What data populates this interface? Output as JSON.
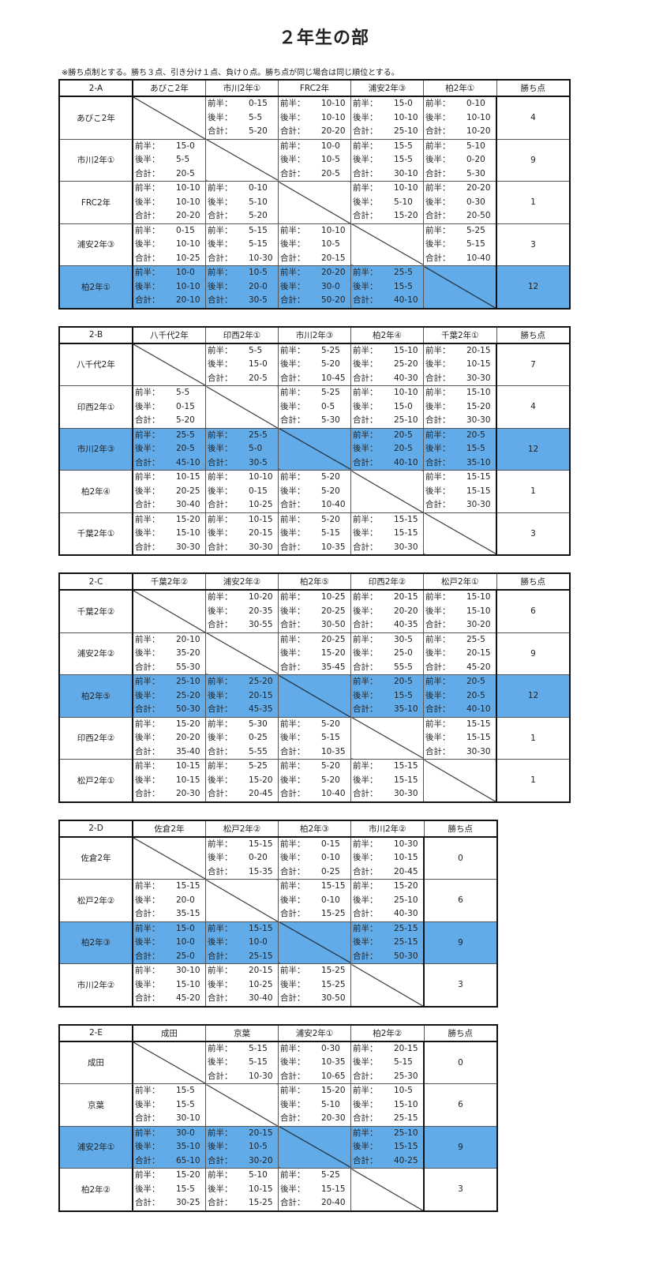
{
  "title": "２年生の部",
  "note": "※勝ち点制とする。勝ち３点、引き分け１点、負け０点。勝ち点が同じ場合は同じ順位とする。",
  "labels": {
    "first": "前半：",
    "second": "後半：",
    "total": "合計：",
    "points": "勝ち点"
  },
  "highlight_color": "#62abe9",
  "groups": [
    {
      "name": "2-A",
      "teams": [
        "あびこ2年",
        "市川2年①",
        "FRC2年",
        "浦安2年③",
        "柏2年①"
      ],
      "points": [
        "4",
        "9",
        "1",
        "3",
        "12"
      ],
      "highlighted": 4,
      "results": [
        [
          null,
          [
            "0-15",
            "5-5",
            "5-20"
          ],
          [
            "10-10",
            "10-10",
            "20-20"
          ],
          [
            "15-0",
            "10-10",
            "25-10"
          ],
          [
            "0-10",
            "10-10",
            "10-20"
          ]
        ],
        [
          [
            "15-0",
            "5-5",
            "20-5"
          ],
          null,
          [
            "10-0",
            "10-5",
            "20-5"
          ],
          [
            "15-5",
            "15-5",
            "30-10"
          ],
          [
            "5-10",
            "0-20",
            "5-30"
          ]
        ],
        [
          [
            "10-10",
            "10-10",
            "20-20"
          ],
          [
            "0-10",
            "5-10",
            "5-20"
          ],
          null,
          [
            "10-10",
            "5-10",
            "15-20"
          ],
          [
            "20-20",
            "0-30",
            "20-50"
          ]
        ],
        [
          [
            "0-15",
            "10-10",
            "10-25"
          ],
          [
            "5-15",
            "5-15",
            "10-30"
          ],
          [
            "10-10",
            "10-5",
            "20-15"
          ],
          null,
          [
            "5-25",
            "5-15",
            "10-40"
          ]
        ],
        [
          [
            "10-0",
            "10-10",
            "20-10"
          ],
          [
            "10-5",
            "20-0",
            "30-5"
          ],
          [
            "20-20",
            "30-0",
            "50-20"
          ],
          [
            "25-5",
            "15-5",
            "40-10"
          ],
          null
        ]
      ]
    },
    {
      "name": "2-B",
      "teams": [
        "八千代2年",
        "印西2年①",
        "市川2年③",
        "柏2年④",
        "千葉2年①"
      ],
      "points": [
        "7",
        "4",
        "12",
        "1",
        "3"
      ],
      "highlighted": 2,
      "results": [
        [
          null,
          [
            "5-5",
            "15-0",
            "20-5"
          ],
          [
            "5-25",
            "5-20",
            "10-45"
          ],
          [
            "15-10",
            "25-20",
            "40-30"
          ],
          [
            "20-15",
            "10-15",
            "30-30"
          ]
        ],
        [
          [
            "5-5",
            "0-15",
            "5-20"
          ],
          null,
          [
            "5-25",
            "0-5",
            "5-30"
          ],
          [
            "10-10",
            "15-0",
            "25-10"
          ],
          [
            "15-10",
            "15-20",
            "30-30"
          ]
        ],
        [
          [
            "25-5",
            "20-5",
            "45-10"
          ],
          [
            "25-5",
            "5-0",
            "30-5"
          ],
          null,
          [
            "20-5",
            "20-5",
            "40-10"
          ],
          [
            "20-5",
            "15-5",
            "35-10"
          ]
        ],
        [
          [
            "10-15",
            "20-25",
            "30-40"
          ],
          [
            "10-10",
            "0-15",
            "10-25"
          ],
          [
            "5-20",
            "5-20",
            "10-40"
          ],
          null,
          [
            "15-15",
            "15-15",
            "30-30"
          ]
        ],
        [
          [
            "15-20",
            "15-10",
            "30-30"
          ],
          [
            "10-15",
            "20-15",
            "30-30"
          ],
          [
            "5-20",
            "5-15",
            "10-35"
          ],
          [
            "15-15",
            "15-15",
            "30-30"
          ],
          null
        ]
      ]
    },
    {
      "name": "2-C",
      "teams": [
        "千葉2年②",
        "浦安2年②",
        "柏2年⑤",
        "印西2年②",
        "松戸2年①"
      ],
      "points": [
        "6",
        "9",
        "12",
        "1",
        "1"
      ],
      "highlighted": 2,
      "results": [
        [
          null,
          [
            "10-20",
            "20-35",
            "30-55"
          ],
          [
            "10-25",
            "20-25",
            "30-50"
          ],
          [
            "20-15",
            "20-20",
            "40-35"
          ],
          [
            "15-10",
            "15-10",
            "30-20"
          ]
        ],
        [
          [
            "20-10",
            "35-20",
            "55-30"
          ],
          null,
          [
            "20-25",
            "15-20",
            "35-45"
          ],
          [
            "30-5",
            "25-0",
            "55-5"
          ],
          [
            "25-5",
            "20-15",
            "45-20"
          ]
        ],
        [
          [
            "25-10",
            "25-20",
            "50-30"
          ],
          [
            "25-20",
            "20-15",
            "45-35"
          ],
          null,
          [
            "20-5",
            "15-5",
            "35-10"
          ],
          [
            "20-5",
            "20-5",
            "40-10"
          ]
        ],
        [
          [
            "15-20",
            "20-20",
            "35-40"
          ],
          [
            "5-30",
            "0-25",
            "5-55"
          ],
          [
            "5-20",
            "5-15",
            "10-35"
          ],
          null,
          [
            "15-15",
            "15-15",
            "30-30"
          ]
        ],
        [
          [
            "10-15",
            "10-15",
            "20-30"
          ],
          [
            "5-25",
            "15-20",
            "20-45"
          ],
          [
            "5-20",
            "5-20",
            "10-40"
          ],
          [
            "15-15",
            "15-15",
            "30-30"
          ],
          null
        ]
      ]
    },
    {
      "name": "2-D",
      "teams": [
        "佐倉2年",
        "松戸2年②",
        "柏2年③",
        "市川2年②"
      ],
      "points": [
        "0",
        "6",
        "9",
        "3"
      ],
      "highlighted": 2,
      "results": [
        [
          null,
          [
            "15-15",
            "0-20",
            "15-35"
          ],
          [
            "0-15",
            "0-10",
            "0-25"
          ],
          [
            "10-30",
            "10-15",
            "20-45"
          ]
        ],
        [
          [
            "15-15",
            "20-0",
            "35-15"
          ],
          null,
          [
            "15-15",
            "0-10",
            "15-25"
          ],
          [
            "15-20",
            "25-10",
            "40-30"
          ]
        ],
        [
          [
            "15-0",
            "10-0",
            "25-0"
          ],
          [
            "15-15",
            "10-0",
            "25-15"
          ],
          null,
          [
            "25-15",
            "25-15",
            "50-30"
          ]
        ],
        [
          [
            "30-10",
            "15-10",
            "45-20"
          ],
          [
            "20-15",
            "10-25",
            "30-40"
          ],
          [
            "15-25",
            "15-25",
            "30-50"
          ],
          null
        ]
      ]
    },
    {
      "name": "2-E",
      "teams": [
        "成田",
        "京葉",
        "浦安2年①",
        "柏2年②"
      ],
      "points": [
        "0",
        "6",
        "9",
        "3"
      ],
      "highlighted": 2,
      "results": [
        [
          null,
          [
            "5-15",
            "5-15",
            "10-30"
          ],
          [
            "0-30",
            "10-35",
            "10-65"
          ],
          [
            "20-15",
            "5-15",
            "25-30"
          ]
        ],
        [
          [
            "15-5",
            "15-5",
            "30-10"
          ],
          null,
          [
            "15-20",
            "5-10",
            "20-30"
          ],
          [
            "10-5",
            "15-10",
            "25-15"
          ]
        ],
        [
          [
            "30-0",
            "35-10",
            "65-10"
          ],
          [
            "20-15",
            "10-5",
            "30-20"
          ],
          null,
          [
            "25-10",
            "15-15",
            "40-25"
          ]
        ],
        [
          [
            "15-20",
            "15-5",
            "30-25"
          ],
          [
            "5-10",
            "10-15",
            "15-25"
          ],
          [
            "5-25",
            "15-15",
            "20-40"
          ],
          null
        ]
      ]
    }
  ]
}
